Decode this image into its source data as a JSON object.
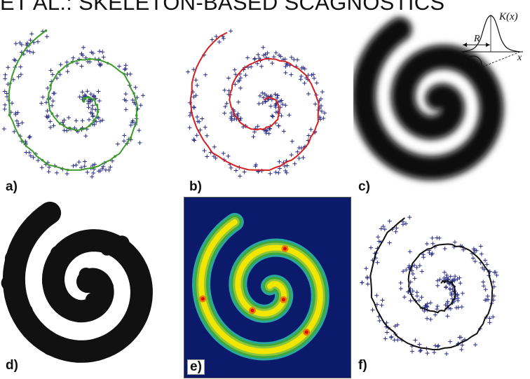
{
  "header": {
    "text": "ET AL.: SKELETON-BASED SCAGNOSTICS"
  },
  "panels": [
    {
      "label": "a)"
    },
    {
      "label": "b)"
    },
    {
      "label": "c)"
    },
    {
      "label": "d)"
    },
    {
      "label": "e)"
    },
    {
      "label": "f)"
    }
  ],
  "kernel_diagram": {
    "function_label": "K(x)",
    "radius_label": "R",
    "axis_label": "x"
  },
  "colors": {
    "points": "#2b2f86",
    "skeleton_a": "#3a9a2a",
    "skeleton_b": "#d42020",
    "skeleton_f": "#111111",
    "blur_fill": "#111111",
    "heatmap_background": "#0b1a6b",
    "heatmap_levels": [
      "#2aa7a0",
      "#3fa83a",
      "#8cc63f",
      "#f2e600",
      "#f07a00",
      "#d41010"
    ]
  },
  "icons": {
    "marker": "plus-marker-icon",
    "kernel": "gaussian-kernel-icon"
  }
}
